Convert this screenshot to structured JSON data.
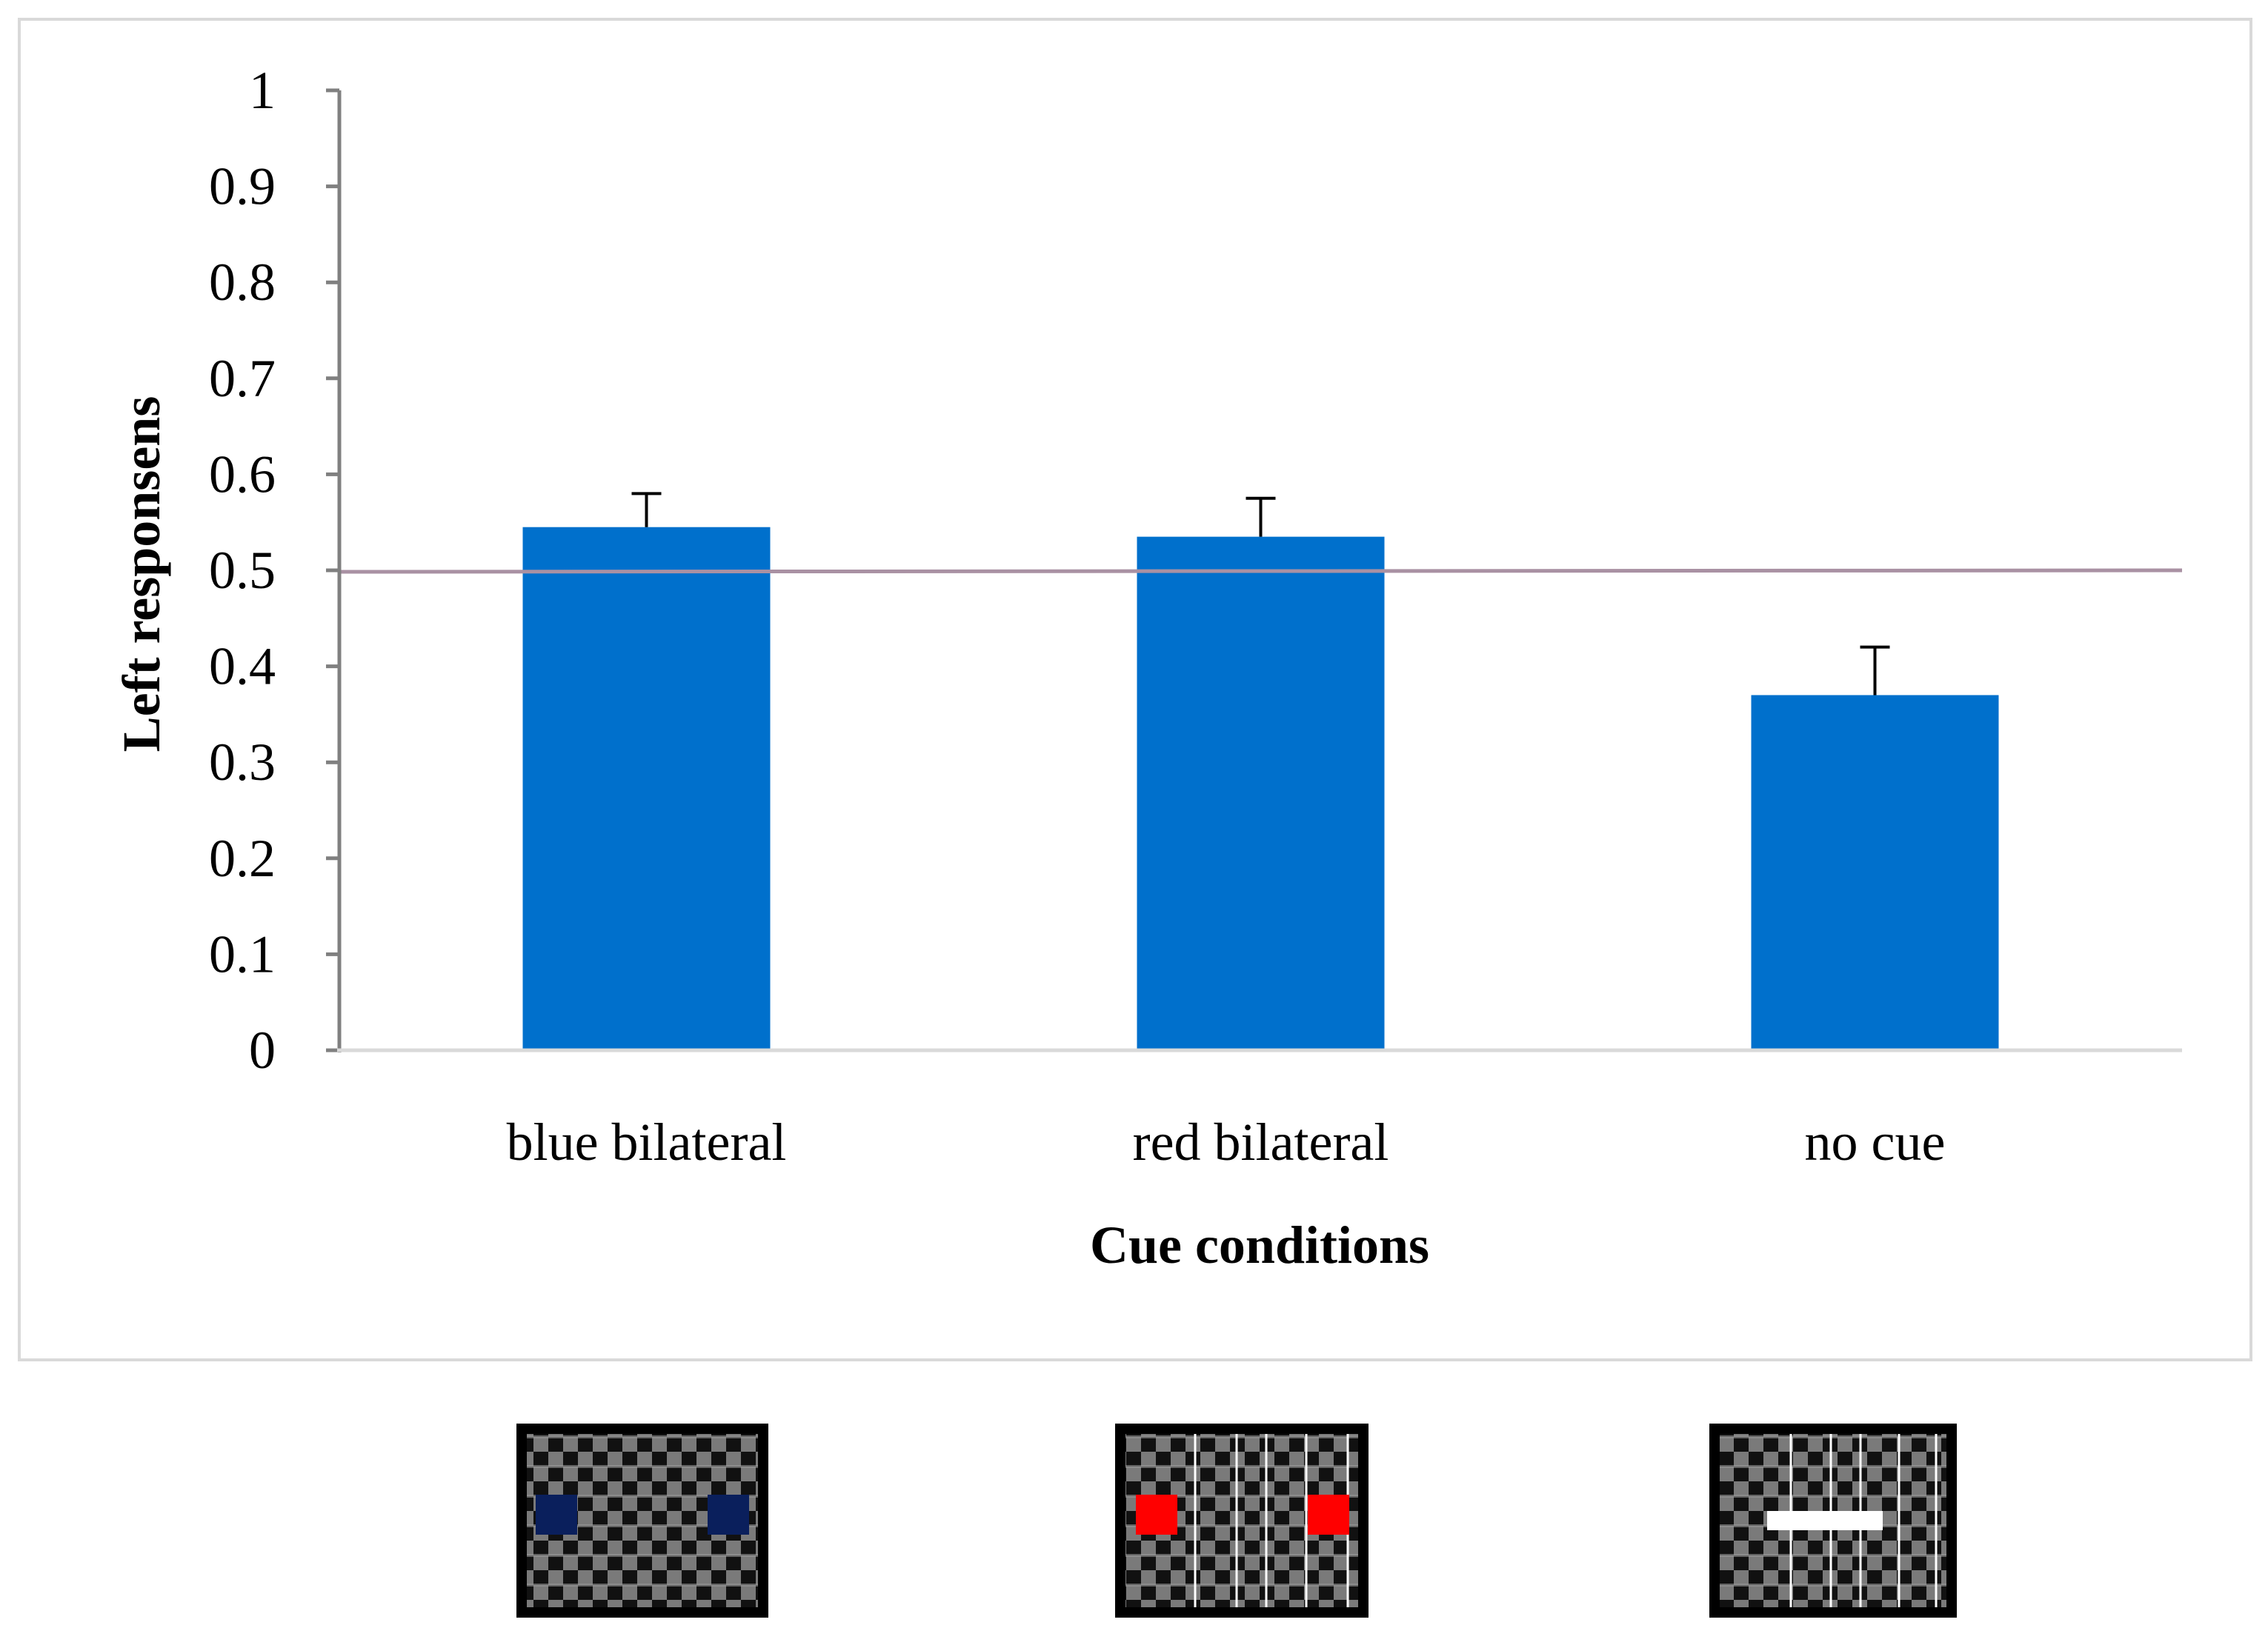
{
  "chart_data": {
    "type": "bar",
    "title": "",
    "xlabel": "Cue conditions",
    "ylabel": "Left responsens",
    "categories": [
      "blue bilateral",
      "red bilateral",
      "no cue"
    ],
    "values": [
      0.545,
      0.535,
      0.37
    ],
    "errors": [
      0.035,
      0.04,
      0.05
    ],
    "ylim": [
      0,
      1
    ],
    "yticks": [
      "0",
      "0.1",
      "0.2",
      "0.3",
      "0.4",
      "0.5",
      "0.6",
      "0.7",
      "0.8",
      "0.9",
      "1"
    ],
    "reference_line": 0.5,
    "grid": false,
    "colors": {
      "bar": "#0070cc",
      "reference": "#a991a3",
      "axis": "#808080",
      "frame": "#d9d9d9",
      "stim_bg": "#000000",
      "stim_gray": "#808080",
      "cue_blue": "#0a1f5c",
      "cue_red": "#ff0000",
      "cue_white": "#ffffff"
    }
  },
  "stimuli": [
    {
      "name": "blue-bilateral",
      "cue": "two blue squares"
    },
    {
      "name": "red-bilateral",
      "cue": "two red squares"
    },
    {
      "name": "no-cue",
      "cue": "white bar"
    }
  ]
}
